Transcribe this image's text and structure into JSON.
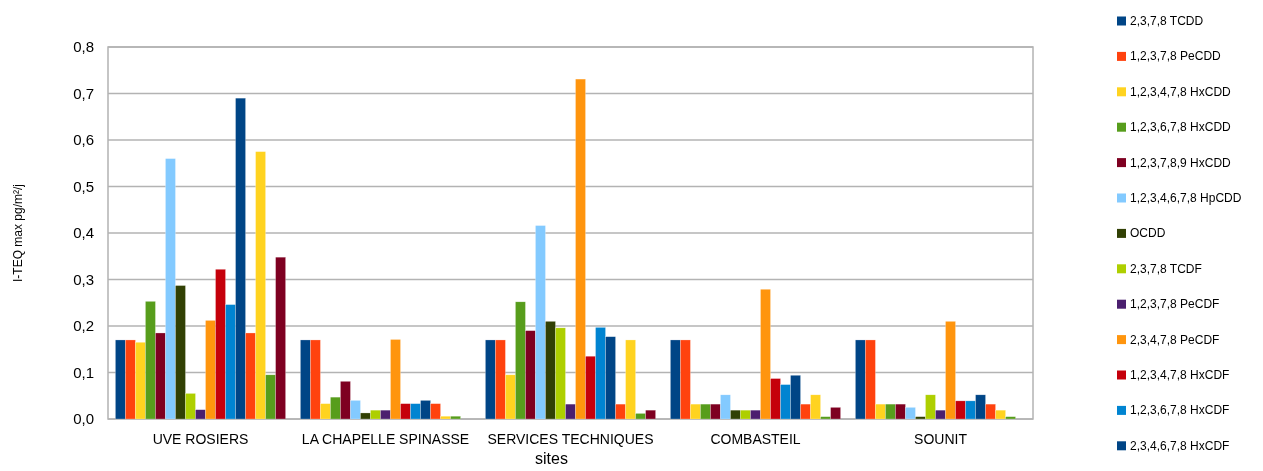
{
  "chart_data": {
    "type": "bar",
    "xlabel": "sites",
    "ylabel": "I-TEQ max pg/m²/j",
    "categories": [
      "UVE ROSIERS",
      "LA CHAPELLE SPINASSE",
      "SERVICES TECHNIQUES",
      "COMBASTEIL",
      "SOUNIT"
    ],
    "series": [
      {
        "name": "2,3,7,8 TCDD",
        "color": "#004586",
        "values": [
          0.17,
          0.17,
          0.17,
          0.17,
          0.17
        ]
      },
      {
        "name": "1,2,3,7,8 PeCDD",
        "color": "#ff420e",
        "values": [
          0.17,
          0.17,
          0.17,
          0.17,
          0.17
        ]
      },
      {
        "name": "1,2,3,4,7,8 HxCDD",
        "color": "#ffd320",
        "values": [
          0.165,
          0.033,
          0.095,
          0.032,
          0.032
        ]
      },
      {
        "name": "1,2,3,6,7,8 HxCDD",
        "color": "#579d1c",
        "values": [
          0.253,
          0.047,
          0.252,
          0.032,
          0.032
        ]
      },
      {
        "name": "1,2,3,7,8,9 HxCDD",
        "color": "#7e0021",
        "values": [
          0.185,
          0.081,
          0.19,
          0.032,
          0.032
        ]
      },
      {
        "name": "1,2,3,4,6,7,8 HpCDD",
        "color": "#83caff",
        "values": [
          0.56,
          0.04,
          0.416,
          0.052,
          0.025
        ]
      },
      {
        "name": "OCDD",
        "color": "#314004",
        "values": [
          0.287,
          0.013,
          0.21,
          0.019,
          0.005
        ]
      },
      {
        "name": "2,3,7,8 TCDF",
        "color": "#aecf00",
        "values": [
          0.055,
          0.019,
          0.196,
          0.019,
          0.052
        ]
      },
      {
        "name": "1,2,3,7,8 PeCDF",
        "color": "#4b1f6f",
        "values": [
          0.02,
          0.019,
          0.032,
          0.019,
          0.019
        ]
      },
      {
        "name": "2,3,4,7,8 PeCDF",
        "color": "#ff950e",
        "values": [
          0.212,
          0.171,
          0.731,
          0.279,
          0.21
        ]
      },
      {
        "name": "1,2,3,4,7,8 HxCDF",
        "color": "#c5000b",
        "values": [
          0.322,
          0.033,
          0.135,
          0.087,
          0.039
        ]
      },
      {
        "name": "1,2,3,6,7,8 HxCDF",
        "color": "#0084d1",
        "values": [
          0.246,
          0.033,
          0.197,
          0.074,
          0.039
        ]
      },
      {
        "name": "2,3,4,6,7,8 HxCDF",
        "color": "#004586",
        "values": [
          0.69,
          0.04,
          0.177,
          0.094,
          0.052
        ]
      },
      {
        "color": "#ff420e",
        "values": [
          0.185,
          0.033,
          0.032,
          0.032,
          0.032
        ]
      },
      {
        "color": "#ffd320",
        "values": [
          0.575,
          0.006,
          0.17,
          0.052,
          0.019
        ]
      },
      {
        "color": "#579d1c",
        "values": [
          0.095,
          0.006,
          0.012,
          0.005,
          0.005
        ]
      },
      {
        "color": "#7e0021",
        "values": [
          0.348,
          0,
          0.019,
          0.025,
          0
        ]
      }
    ],
    "ylim": [
      0,
      0.8
    ],
    "yticks": [
      {
        "value": 0,
        "label": "0,0"
      },
      {
        "value": 0.1,
        "label": "0,1"
      },
      {
        "value": 0.2,
        "label": "0,2"
      },
      {
        "value": 0.3,
        "label": "0,3"
      },
      {
        "value": 0.4,
        "label": "0,4"
      },
      {
        "value": 0.5,
        "label": "0,5"
      },
      {
        "value": 0.6,
        "label": "0,6"
      },
      {
        "value": 0.7,
        "label": "0,7"
      },
      {
        "value": 0.8,
        "label": "0,8"
      }
    ],
    "grid": "y",
    "legend": "right"
  }
}
